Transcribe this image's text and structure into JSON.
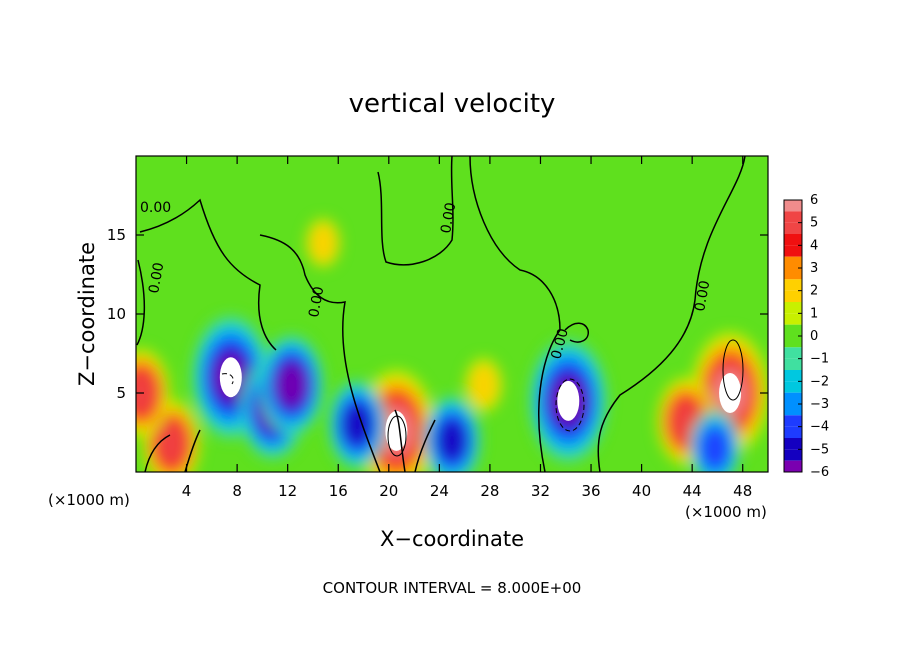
{
  "chart_data": {
    "type": "heatmap",
    "title": "vertical velocity",
    "xlabel": "X−coordinate",
    "ylabel": "Z−coordinate",
    "x_unit": "(×1000 m)",
    "y_unit": "(×1000 m)",
    "xlim": [
      0,
      50
    ],
    "ylim": [
      0,
      20
    ],
    "x_ticks": [
      "4",
      "8",
      "12",
      "16",
      "20",
      "24",
      "28",
      "32",
      "36",
      "40",
      "44",
      "48"
    ],
    "x_tick_values": [
      4,
      8,
      12,
      16,
      20,
      24,
      28,
      32,
      36,
      40,
      44,
      48
    ],
    "y_ticks": [
      "5",
      "10",
      "15"
    ],
    "y_tick_values": [
      5,
      10,
      15
    ],
    "colorbar": {
      "labels": [
        "6",
        "5",
        "4",
        "3",
        "2",
        "1",
        "0",
        "−1",
        "−2",
        "−3",
        "−4",
        "−5",
        "−6"
      ],
      "levels": [
        6,
        5,
        4,
        3,
        2,
        1,
        0,
        -1,
        -2,
        -3,
        -4,
        -5,
        -6
      ],
      "colors": [
        "#f08c8c",
        "#f04545",
        "#f01010",
        "#ff8c00",
        "#ffd000",
        "#c8f000",
        "#5fe01e",
        "#40e0a0",
        "#00c8e0",
        "#0090ff",
        "#1e3cff",
        "#1400c0",
        "#7a00b0"
      ],
      "saturated_positive": "#ffffff",
      "saturated_negative": "#ffffff"
    },
    "contour_label": "0.00",
    "contour_interval_text": "CONTOUR INTERVAL = 8.000E+00",
    "features": [
      {
        "type": "updraft",
        "x": 20.6,
        "z": 2.6,
        "value": 8
      },
      {
        "type": "updraft",
        "x": 47.0,
        "z": 5.0,
        "value": 8
      },
      {
        "type": "updraft",
        "x": 43.5,
        "z": 3.2,
        "value": 5
      },
      {
        "type": "updraft",
        "x": 2.8,
        "z": 1.8,
        "value": 5
      },
      {
        "type": "updraft",
        "x": 0.4,
        "z": 5.0,
        "value": 5
      },
      {
        "type": "updraft",
        "x": 27.5,
        "z": 5.5,
        "value": 2
      },
      {
        "type": "updraft",
        "x": 14.8,
        "z": 14.5,
        "value": 1.5
      },
      {
        "type": "downdraft",
        "x": 34.2,
        "z": 4.5,
        "value": -8
      },
      {
        "type": "downdraft",
        "x": 7.5,
        "z": 6.0,
        "value": -8
      },
      {
        "type": "downdraft",
        "x": 10.8,
        "z": 4.0,
        "value": -6
      },
      {
        "type": "downdraft",
        "x": 12.3,
        "z": 5.5,
        "value": -6
      },
      {
        "type": "downdraft",
        "x": 25.0,
        "z": 2.0,
        "value": -5
      },
      {
        "type": "downdraft",
        "x": 17.5,
        "z": 3.0,
        "value": -5
      },
      {
        "type": "downdraft",
        "x": 45.8,
        "z": 1.5,
        "value": -4
      }
    ]
  }
}
